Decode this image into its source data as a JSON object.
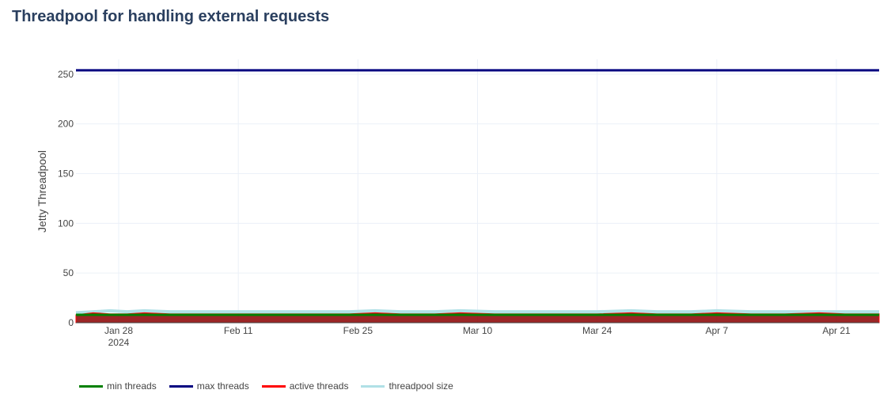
{
  "chart_data": {
    "type": "line",
    "title": "Threadpool for handling external requests",
    "ylabel": "Jetty Threadpool",
    "xlabel": "",
    "x_range": [
      "2024-01-23",
      "2024-04-26"
    ],
    "ylim": [
      0,
      265
    ],
    "y_ticks": [
      0,
      50,
      100,
      150,
      200,
      250
    ],
    "x_ticks": [
      {
        "date": "2024-01-28",
        "label": "Jan 28",
        "sublabel": "2024"
      },
      {
        "date": "2024-02-11",
        "label": "Feb 11",
        "sublabel": ""
      },
      {
        "date": "2024-02-25",
        "label": "Feb 25",
        "sublabel": ""
      },
      {
        "date": "2024-03-10",
        "label": "Mar 10",
        "sublabel": ""
      },
      {
        "date": "2024-03-24",
        "label": "Mar 24",
        "sublabel": ""
      },
      {
        "date": "2024-04-07",
        "label": "Apr 7",
        "sublabel": ""
      },
      {
        "date": "2024-04-21",
        "label": "Apr 21",
        "sublabel": ""
      }
    ],
    "grid": true,
    "legend_position": "bottom-left",
    "series": [
      {
        "name": "min threads",
        "color": "#008000",
        "style": "line",
        "x": [
          "2024-01-23",
          "2024-04-26"
        ],
        "y": [
          8,
          8
        ]
      },
      {
        "name": "max threads",
        "color": "#000080",
        "style": "line",
        "x": [
          "2024-01-23",
          "2024-04-26"
        ],
        "y": [
          254,
          254
        ]
      },
      {
        "name": "active threads",
        "color": "#ff0000",
        "style": "area",
        "x": [
          "2024-01-23",
          "2024-01-25",
          "2024-01-27",
          "2024-01-29",
          "2024-01-31",
          "2024-02-03",
          "2024-02-07",
          "2024-02-10",
          "2024-02-14",
          "2024-02-18",
          "2024-02-21",
          "2024-02-24",
          "2024-02-27",
          "2024-03-01",
          "2024-03-05",
          "2024-03-08",
          "2024-03-12",
          "2024-03-16",
          "2024-03-20",
          "2024-03-24",
          "2024-03-28",
          "2024-03-31",
          "2024-04-04",
          "2024-04-07",
          "2024-04-11",
          "2024-04-15",
          "2024-04-19",
          "2024-04-22",
          "2024-04-26"
        ],
        "y": [
          8,
          10,
          9,
          9,
          10,
          9,
          9,
          9,
          9,
          9,
          9,
          9,
          10,
          9,
          9,
          10,
          9,
          9,
          9,
          9,
          10,
          9,
          9,
          10,
          9,
          9,
          10,
          9,
          9
        ]
      },
      {
        "name": "threadpool size",
        "color": "#b0e0e6",
        "style": "line",
        "x": [
          "2024-01-23",
          "2024-01-25",
          "2024-01-27",
          "2024-01-29",
          "2024-01-31",
          "2024-02-03",
          "2024-02-07",
          "2024-02-10",
          "2024-02-14",
          "2024-02-18",
          "2024-02-21",
          "2024-02-24",
          "2024-02-27",
          "2024-03-01",
          "2024-03-05",
          "2024-03-08",
          "2024-03-12",
          "2024-03-16",
          "2024-03-20",
          "2024-03-24",
          "2024-03-28",
          "2024-03-31",
          "2024-04-04",
          "2024-04-07",
          "2024-04-11",
          "2024-04-15",
          "2024-04-19",
          "2024-04-22",
          "2024-04-26"
        ],
        "y": [
          10,
          11,
          12,
          11,
          12,
          11,
          11,
          11,
          11,
          11,
          11,
          11,
          12,
          11,
          11,
          12,
          11,
          11,
          11,
          11,
          12,
          11,
          11,
          12,
          11,
          11,
          11,
          11,
          11
        ]
      }
    ]
  }
}
